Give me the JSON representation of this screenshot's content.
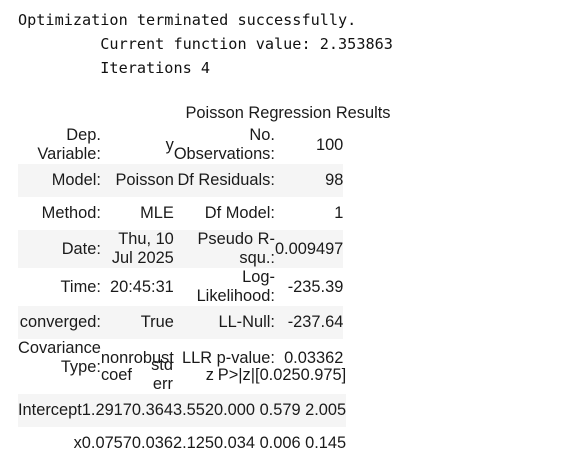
{
  "log": {
    "line1": "Optimization terminated successfully.",
    "line2": "         Current function value: 2.353863",
    "line3": "         Iterations 4"
  },
  "summary": {
    "caption": "Poisson Regression Results",
    "rows": [
      {
        "label1": "Dep. Variable:",
        "value1": "y",
        "label2": "No. Observations:",
        "value2": "100"
      },
      {
        "label1": "Model:",
        "value1": "Poisson",
        "label2": "Df Residuals:",
        "value2": "98"
      },
      {
        "label1": "Method:",
        "value1": "MLE",
        "label2": "Df Model:",
        "value2": "1"
      },
      {
        "label1": "Date:",
        "value1": "Thu, 10 Jul 2025",
        "label2": "Pseudo R-squ.:",
        "value2": "0.009497"
      },
      {
        "label1": "Time:",
        "value1": "20:45:31",
        "label2": "Log-Likelihood:",
        "value2": "-235.39"
      },
      {
        "label1": "converged:",
        "value1": "True",
        "label2": "LL-Null:",
        "value2": "-237.64"
      },
      {
        "label1": "Covariance Type:",
        "value1": "nonrobust",
        "label2": "LLR p-value:",
        "value2": "0.03362"
      }
    ]
  },
  "coefficients": {
    "headers": [
      "",
      "coef",
      "std err",
      "z",
      "P>|z|",
      "[0.025",
      "0.975]"
    ],
    "rows": [
      {
        "name": "Intercept",
        "coef": "1.2917",
        "std_err": "0.364",
        "z": "3.552",
        "p": "0.000",
        "ci_low": "0.579",
        "ci_high": "2.005"
      },
      {
        "name": "x",
        "coef": "0.0757",
        "std_err": "0.036",
        "z": "2.125",
        "p": "0.034",
        "ci_low": "0.006",
        "ci_high": "0.145"
      }
    ]
  }
}
